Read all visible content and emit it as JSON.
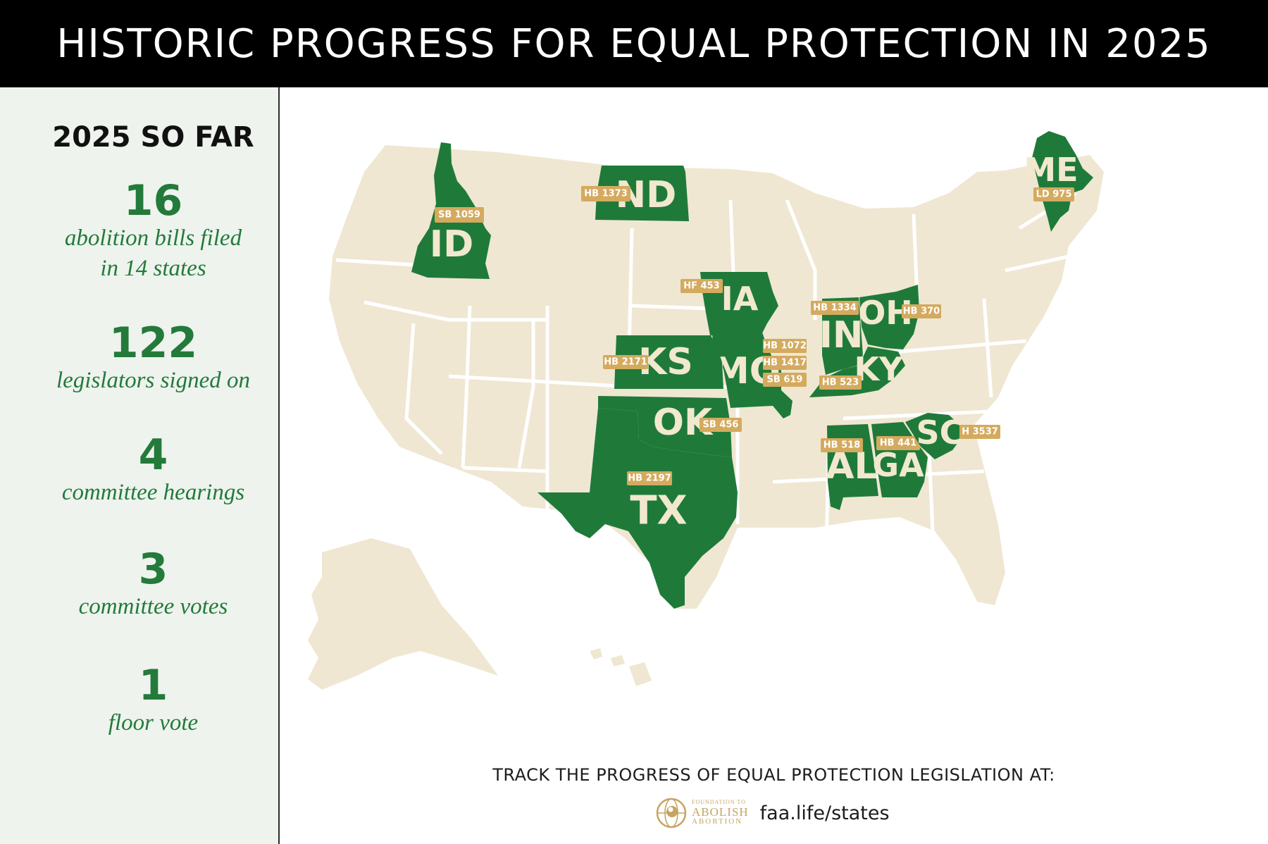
{
  "header": {
    "title": "HISTORIC PROGRESS FOR EQUAL PROTECTION IN 2025"
  },
  "sidebar": {
    "title": "2025 SO FAR",
    "stats": [
      {
        "number": "16",
        "desc_line1": "abolition bills filed",
        "desc_line2": "in 14 states"
      },
      {
        "number": "122",
        "desc_line1": "legislators signed on",
        "desc_line2": ""
      },
      {
        "number": "4",
        "desc_line1": "committee hearings",
        "desc_line2": ""
      },
      {
        "number": "3",
        "desc_line1": "committee votes",
        "desc_line2": ""
      },
      {
        "number": "1",
        "desc_line1": "floor vote",
        "desc_line2": ""
      }
    ]
  },
  "map": {
    "colors": {
      "land": "#efe7d2",
      "highlight": "#1f7a3a",
      "tag": "#d4aa5e",
      "abbr_text": "#f1e8cf"
    },
    "states": [
      {
        "abbr": "ID",
        "bills": [
          "SB 1059"
        ]
      },
      {
        "abbr": "ND",
        "bills": [
          "HB 1373"
        ]
      },
      {
        "abbr": "ME",
        "bills": [
          "LD 975"
        ]
      },
      {
        "abbr": "IA",
        "bills": [
          "HF 453"
        ]
      },
      {
        "abbr": "IN",
        "bills": [
          "HB 1334"
        ]
      },
      {
        "abbr": "OH",
        "bills": [
          "HB 370"
        ]
      },
      {
        "abbr": "KS",
        "bills": [
          "HB 2171"
        ]
      },
      {
        "abbr": "MO",
        "bills": [
          "HB 1072",
          "HB 1417",
          "SB 619"
        ]
      },
      {
        "abbr": "KY",
        "bills": [
          "HB 523"
        ]
      },
      {
        "abbr": "OK",
        "bills": [
          "SB 456"
        ]
      },
      {
        "abbr": "TX",
        "bills": [
          "HB 2197"
        ]
      },
      {
        "abbr": "AL",
        "bills": [
          "HB 518"
        ]
      },
      {
        "abbr": "GA",
        "bills": [
          "HB 441"
        ]
      },
      {
        "abbr": "SC",
        "bills": [
          "H 3537"
        ]
      }
    ]
  },
  "footer": {
    "track_text": "TRACK THE PROGRESS OF EQUAL PROTECTION LEGISLATION AT:",
    "logo_line1": "FOUNDATION TO",
    "logo_line2": "ABOLISH",
    "logo_line3": "ABORTION",
    "url": "faa.life/states"
  }
}
